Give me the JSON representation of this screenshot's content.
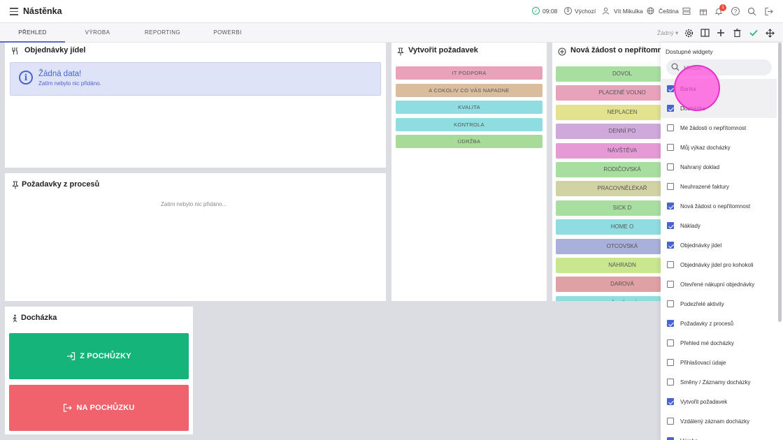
{
  "header": {
    "title": "Nástěnka",
    "time": "09:08",
    "status": "Výchozí",
    "user": "Vít Mikulka",
    "language": "Čeština",
    "notification_count": "1"
  },
  "tabs": [
    {
      "label": "PŘEHLED"
    },
    {
      "label": "VÝROBA"
    },
    {
      "label": "REPORTING"
    },
    {
      "label": "POWERBI"
    }
  ],
  "toolbar": {
    "filter_value": "Žádný"
  },
  "orders_widget": {
    "title": "Objednávky jídel",
    "nodata_title": "Žádná data!",
    "nodata_sub": "Zatím nebylo nic přidáno."
  },
  "process_widget": {
    "title": "Požadavky z procesů",
    "empty": "Zatím nebylo nic přidáno..."
  },
  "create_widget": {
    "title": "Vytvořit požadavek",
    "buttons": [
      {
        "label": "IT PODPORA",
        "color": "#e8a3bb"
      },
      {
        "label": "A COKOLIV CO VÁS NAPADNE",
        "color": "#d9bd9c"
      },
      {
        "label": "KVALITA",
        "color": "#8fdde0"
      },
      {
        "label": "KONTROLA",
        "color": "#8fdde0"
      },
      {
        "label": "ÚDRŽBA",
        "color": "#a8db99"
      }
    ]
  },
  "absence_widget": {
    "title": "Nová žádost o nepřítomnos",
    "buttons": [
      {
        "label": "DOVOL",
        "color": "#a8dfa0"
      },
      {
        "label": "PLACENÉ VOLNO",
        "color": "#e8a3bb"
      },
      {
        "label": "NEPLACEN",
        "color": "#e3e28f"
      },
      {
        "label": "DENNÍ PO",
        "color": "#cfa8dc"
      },
      {
        "label": "NÁVŠTĚVA",
        "color": "#e59ad6"
      },
      {
        "label": "RODIČOVSKÁ",
        "color": "#a8dfa0"
      },
      {
        "label": "PRACOVNĚLÉKAŘ",
        "color": "#d1d3a4"
      },
      {
        "label": "SICK D",
        "color": "#a8dfa0"
      },
      {
        "label": "HOME O",
        "color": "#8fdde0"
      },
      {
        "label": "OTCOVSKÁ",
        "color": "#a9b0d9"
      },
      {
        "label": "NÁHRADN",
        "color": "#c9e691"
      },
      {
        "label": "DAROVÁ",
        "color": "#e0a1a5"
      },
      {
        "label": "OŠETŘOVÁ",
        "color": "#8fdde0"
      }
    ]
  },
  "attendance_widget": {
    "title": "Docházka",
    "btn_in": "Z POCHŮZKY",
    "btn_out": "NA POCHŮZKU",
    "color_in": "#14b47a",
    "color_out": "#f0636d"
  },
  "widgets_panel": {
    "title": "Dostupné widgety",
    "search_placeholder": "Hledat...",
    "items": [
      {
        "label": "Banka",
        "checked": true
      },
      {
        "label": "Docházka",
        "checked": true
      },
      {
        "label": "Mé žádosti o nepřítomnost",
        "checked": false
      },
      {
        "label": "Můj výkaz docházky",
        "checked": false
      },
      {
        "label": "Nahraný doklad",
        "checked": false
      },
      {
        "label": "Neuhrazené faktury",
        "checked": false
      },
      {
        "label": "Nová žádost o nepřítomnost",
        "checked": true
      },
      {
        "label": "Náklady",
        "checked": true
      },
      {
        "label": "Objednávky jídel",
        "checked": true
      },
      {
        "label": "Objednávky jídel pro kohokoli",
        "checked": false
      },
      {
        "label": "Otevřené nákupní objednávky",
        "checked": false
      },
      {
        "label": "Podezřelé aktivity",
        "checked": false
      },
      {
        "label": "Požadavky z procesů",
        "checked": true
      },
      {
        "label": "Přehled mé docházky",
        "checked": false
      },
      {
        "label": "Přihlašovací údaje",
        "checked": false
      },
      {
        "label": "Směny / Záznamy docházky",
        "checked": false
      },
      {
        "label": "Vytvořit požadavek",
        "checked": true
      },
      {
        "label": "Vzdálený záznam docházky",
        "checked": false
      },
      {
        "label": "Výroba",
        "checked": true
      }
    ]
  }
}
